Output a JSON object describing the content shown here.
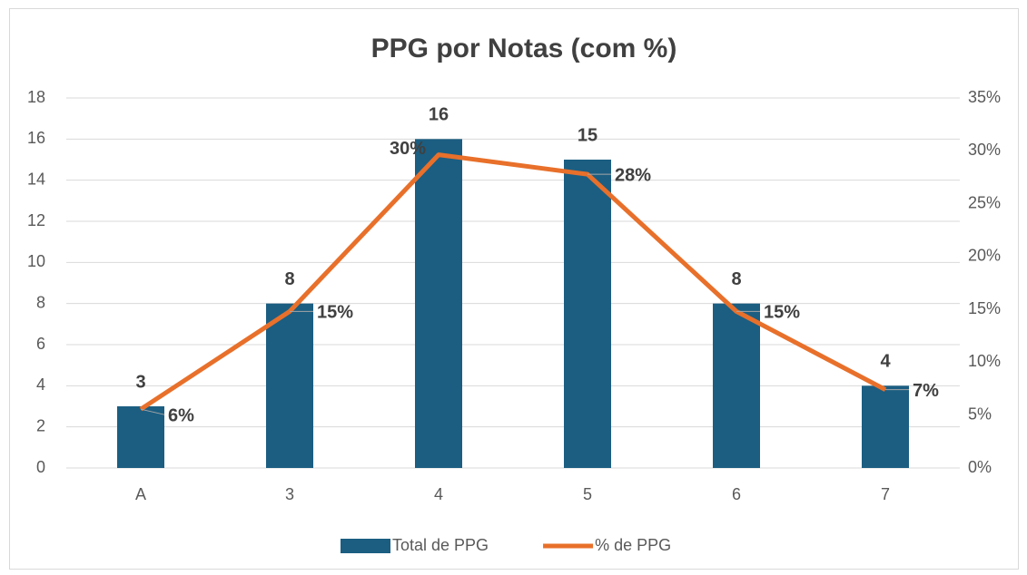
{
  "chart_data": {
    "type": "bar",
    "title": "PPG por Notas (com %)",
    "categories": [
      "A",
      "3",
      "4",
      "5",
      "6",
      "7"
    ],
    "series": [
      {
        "name": "Total de PPG",
        "type": "bar",
        "color": "#1b5e82",
        "values": [
          3,
          8,
          16,
          15,
          8,
          4
        ]
      },
      {
        "name": "% de PPG",
        "type": "line",
        "axis": "y2",
        "color": "#e8702a",
        "values": [
          5.56,
          14.81,
          29.63,
          27.78,
          14.81,
          7.41
        ],
        "value_labels": [
          "6%",
          "15%",
          "30%",
          "28%",
          "15%",
          "7%"
        ]
      }
    ],
    "ylim": [
      0,
      18
    ],
    "yticks": [
      0,
      2,
      4,
      6,
      8,
      10,
      12,
      14,
      16,
      18
    ],
    "y2lim": [
      0,
      35
    ],
    "y2ticks": [
      {
        "value": 0,
        "label": "0%"
      },
      {
        "value": 5,
        "label": "5%"
      },
      {
        "value": 10,
        "label": "10%"
      },
      {
        "value": 15,
        "label": "15%"
      },
      {
        "value": 20,
        "label": "20%"
      },
      {
        "value": 25,
        "label": "25%"
      },
      {
        "value": 30,
        "label": "30%"
      },
      {
        "value": 35,
        "label": "35%"
      }
    ],
    "grid": true,
    "legend": "bottom"
  }
}
